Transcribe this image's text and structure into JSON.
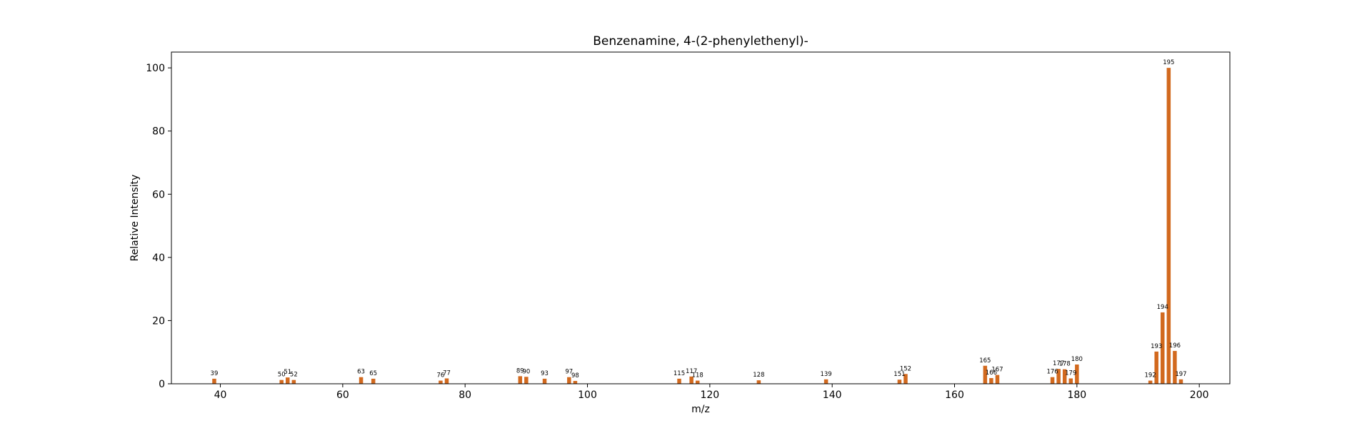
{
  "chart_data": {
    "type": "bar",
    "title": "Benzenamine, 4-(2-phenylethenyl)-",
    "xlabel": "m/z",
    "ylabel": "Relative Intensity",
    "xlim": [
      32,
      205
    ],
    "ylim": [
      0,
      105
    ],
    "xticks": [
      40,
      60,
      80,
      100,
      120,
      140,
      160,
      180,
      200
    ],
    "yticks": [
      0,
      20,
      40,
      60,
      80,
      100
    ],
    "grid": false,
    "bar_color": "#d2691e",
    "peaks": [
      {
        "mz": 39,
        "intensity": 1.6
      },
      {
        "mz": 50,
        "intensity": 1.2
      },
      {
        "mz": 51,
        "intensity": 2.0
      },
      {
        "mz": 52,
        "intensity": 1.2
      },
      {
        "mz": 63,
        "intensity": 2.1
      },
      {
        "mz": 65,
        "intensity": 1.6
      },
      {
        "mz": 76,
        "intensity": 1.0
      },
      {
        "mz": 77,
        "intensity": 1.7
      },
      {
        "mz": 89,
        "intensity": 2.4
      },
      {
        "mz": 90,
        "intensity": 2.2
      },
      {
        "mz": 93,
        "intensity": 1.6
      },
      {
        "mz": 97,
        "intensity": 2.1
      },
      {
        "mz": 98,
        "intensity": 0.9
      },
      {
        "mz": 115,
        "intensity": 1.6
      },
      {
        "mz": 117,
        "intensity": 2.3
      },
      {
        "mz": 118,
        "intensity": 1.0
      },
      {
        "mz": 128,
        "intensity": 1.1
      },
      {
        "mz": 139,
        "intensity": 1.4
      },
      {
        "mz": 151,
        "intensity": 1.3
      },
      {
        "mz": 152,
        "intensity": 3.1
      },
      {
        "mz": 165,
        "intensity": 5.7
      },
      {
        "mz": 166,
        "intensity": 1.8
      },
      {
        "mz": 167,
        "intensity": 2.8
      },
      {
        "mz": 176,
        "intensity": 2.1
      },
      {
        "mz": 177,
        "intensity": 4.7
      },
      {
        "mz": 178,
        "intensity": 4.6
      },
      {
        "mz": 179,
        "intensity": 1.7
      },
      {
        "mz": 180,
        "intensity": 6.1
      },
      {
        "mz": 192,
        "intensity": 1.0
      },
      {
        "mz": 193,
        "intensity": 10.2
      },
      {
        "mz": 194,
        "intensity": 22.6
      },
      {
        "mz": 195,
        "intensity": 100.0
      },
      {
        "mz": 196,
        "intensity": 10.4
      },
      {
        "mz": 197,
        "intensity": 1.4
      }
    ]
  }
}
